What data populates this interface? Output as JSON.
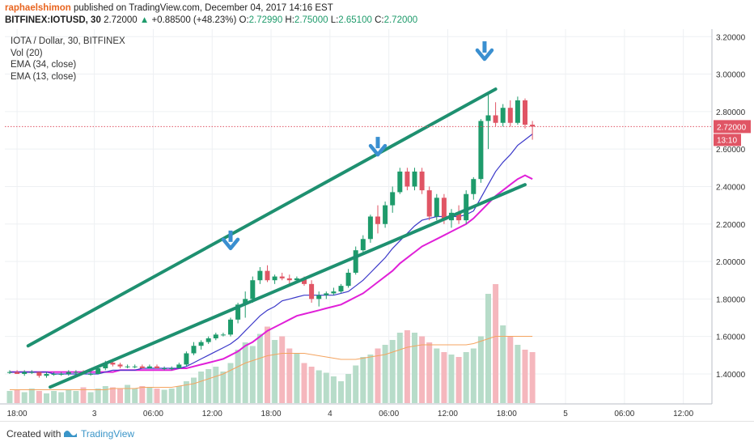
{
  "header": {
    "author": "raphaelshimon",
    "published": "published on TradingView.com, December 04, 2017 14:16 EST",
    "symbol": "BITFINEX:IOTUSD, 30",
    "last": "2.72000",
    "arrow": "▲",
    "change": "+0.88500 (+48.23%)",
    "o_label": "O:",
    "o": "2.72990",
    "h_label": "H:",
    "h": "2.75000",
    "l_label": "L:",
    "l": "2.65100",
    "c_label": "C:",
    "c": "2.72000"
  },
  "legend": {
    "title": "IOTA / Dollar, 30, BITFINEX",
    "vol": "Vol (20)",
    "ema34": "EMA (34, close)",
    "ema13": "EMA (13, close)"
  },
  "footer": {
    "created": "Created with",
    "brand": "TradingView"
  },
  "colors": {
    "up": "#1e9b6b",
    "down": "#e05565",
    "trendline": "#1e9070",
    "arrow": "#3a8fd0",
    "ema13": "#3b38c9",
    "ema34": "#e020d8",
    "vol_ma": "#f4a460",
    "vol_up": "#b7dcc9",
    "vol_down": "#f5b7bd",
    "price_label": "#e05565"
  },
  "chart_data": {
    "type": "candlestick",
    "price_axis": {
      "range": [
        1.24,
        3.24
      ],
      "ticks": [
        "3.20000",
        "3.00000",
        "2.80000",
        "2.60000",
        "2.40000",
        "2.20000",
        "2.00000",
        "1.80000",
        "1.60000",
        "1.40000"
      ]
    },
    "time_axis": [
      "18:00",
      "3",
      "06:00",
      "12:00",
      "18:00",
      "4",
      "06:00",
      "12:00",
      "18:00",
      "5",
      "06:00",
      "12:00"
    ],
    "last_price_label": "2.72000",
    "countdown_label": "13:10",
    "last_price": 2.72,
    "trendlines": [
      {
        "name": "upper",
        "from": [
          2.5,
          1.55
        ],
        "to": [
          66,
          2.92
        ]
      },
      {
        "name": "lower",
        "from": [
          5.5,
          1.33
        ],
        "to": [
          70,
          2.41
        ]
      }
    ],
    "arrows_at_bar": [
      30,
      50,
      64.5
    ],
    "candles": [
      {
        "o": 1.41,
        "h": 1.42,
        "l": 1.4,
        "c": 1.41
      },
      {
        "o": 1.41,
        "h": 1.42,
        "l": 1.4,
        "c": 1.4
      },
      {
        "o": 1.4,
        "h": 1.42,
        "l": 1.39,
        "c": 1.41
      },
      {
        "o": 1.41,
        "h": 1.42,
        "l": 1.4,
        "c": 1.41
      },
      {
        "o": 1.41,
        "h": 1.41,
        "l": 1.38,
        "c": 1.39
      },
      {
        "o": 1.39,
        "h": 1.41,
        "l": 1.38,
        "c": 1.4
      },
      {
        "o": 1.4,
        "h": 1.41,
        "l": 1.39,
        "c": 1.4
      },
      {
        "o": 1.4,
        "h": 1.41,
        "l": 1.39,
        "c": 1.4
      },
      {
        "o": 1.4,
        "h": 1.42,
        "l": 1.39,
        "c": 1.41
      },
      {
        "o": 1.41,
        "h": 1.42,
        "l": 1.4,
        "c": 1.41
      },
      {
        "o": 1.41,
        "h": 1.42,
        "l": 1.4,
        "c": 1.4
      },
      {
        "o": 1.4,
        "h": 1.41,
        "l": 1.39,
        "c": 1.4
      },
      {
        "o": 1.4,
        "h": 1.44,
        "l": 1.4,
        "c": 1.43
      },
      {
        "o": 1.43,
        "h": 1.47,
        "l": 1.42,
        "c": 1.46
      },
      {
        "o": 1.46,
        "h": 1.47,
        "l": 1.44,
        "c": 1.45
      },
      {
        "o": 1.45,
        "h": 1.46,
        "l": 1.43,
        "c": 1.44
      },
      {
        "o": 1.44,
        "h": 1.45,
        "l": 1.43,
        "c": 1.44
      },
      {
        "o": 1.44,
        "h": 1.45,
        "l": 1.43,
        "c": 1.44
      },
      {
        "o": 1.44,
        "h": 1.45,
        "l": 1.43,
        "c": 1.43
      },
      {
        "o": 1.43,
        "h": 1.45,
        "l": 1.43,
        "c": 1.44
      },
      {
        "o": 1.44,
        "h": 1.45,
        "l": 1.43,
        "c": 1.43
      },
      {
        "o": 1.43,
        "h": 1.44,
        "l": 1.42,
        "c": 1.43
      },
      {
        "o": 1.43,
        "h": 1.44,
        "l": 1.42,
        "c": 1.43
      },
      {
        "o": 1.43,
        "h": 1.46,
        "l": 1.43,
        "c": 1.45
      },
      {
        "o": 1.45,
        "h": 1.52,
        "l": 1.44,
        "c": 1.51
      },
      {
        "o": 1.51,
        "h": 1.57,
        "l": 1.5,
        "c": 1.55
      },
      {
        "o": 1.55,
        "h": 1.58,
        "l": 1.53,
        "c": 1.57
      },
      {
        "o": 1.57,
        "h": 1.6,
        "l": 1.56,
        "c": 1.59
      },
      {
        "o": 1.59,
        "h": 1.62,
        "l": 1.58,
        "c": 1.61
      },
      {
        "o": 1.61,
        "h": 1.62,
        "l": 1.6,
        "c": 1.61
      },
      {
        "o": 1.61,
        "h": 1.7,
        "l": 1.6,
        "c": 1.69
      },
      {
        "o": 1.69,
        "h": 1.78,
        "l": 1.67,
        "c": 1.77
      },
      {
        "o": 1.77,
        "h": 1.84,
        "l": 1.7,
        "c": 1.8
      },
      {
        "o": 1.8,
        "h": 1.92,
        "l": 1.78,
        "c": 1.9
      },
      {
        "o": 1.9,
        "h": 1.97,
        "l": 1.88,
        "c": 1.95
      },
      {
        "o": 1.95,
        "h": 1.98,
        "l": 1.89,
        "c": 1.9
      },
      {
        "o": 1.9,
        "h": 1.93,
        "l": 1.88,
        "c": 1.92
      },
      {
        "o": 1.92,
        "h": 1.94,
        "l": 1.9,
        "c": 1.91
      },
      {
        "o": 1.91,
        "h": 1.93,
        "l": 1.88,
        "c": 1.9
      },
      {
        "o": 1.9,
        "h": 1.92,
        "l": 1.89,
        "c": 1.91
      },
      {
        "o": 1.91,
        "h": 1.92,
        "l": 1.87,
        "c": 1.88
      },
      {
        "o": 1.88,
        "h": 1.9,
        "l": 1.78,
        "c": 1.8
      },
      {
        "o": 1.8,
        "h": 1.84,
        "l": 1.76,
        "c": 1.82
      },
      {
        "o": 1.82,
        "h": 1.84,
        "l": 1.8,
        "c": 1.83
      },
      {
        "o": 1.83,
        "h": 1.86,
        "l": 1.82,
        "c": 1.84
      },
      {
        "o": 1.84,
        "h": 1.88,
        "l": 1.83,
        "c": 1.87
      },
      {
        "o": 1.87,
        "h": 1.96,
        "l": 1.86,
        "c": 1.94
      },
      {
        "o": 1.94,
        "h": 2.08,
        "l": 1.93,
        "c": 2.06
      },
      {
        "o": 2.06,
        "h": 2.14,
        "l": 2.05,
        "c": 2.12
      },
      {
        "o": 2.12,
        "h": 2.25,
        "l": 2.1,
        "c": 2.24
      },
      {
        "o": 2.24,
        "h": 2.3,
        "l": 2.15,
        "c": 2.2
      },
      {
        "o": 2.2,
        "h": 2.32,
        "l": 2.18,
        "c": 2.3
      },
      {
        "o": 2.3,
        "h": 2.4,
        "l": 2.26,
        "c": 2.37
      },
      {
        "o": 2.37,
        "h": 2.5,
        "l": 2.36,
        "c": 2.48
      },
      {
        "o": 2.48,
        "h": 2.5,
        "l": 2.38,
        "c": 2.4
      },
      {
        "o": 2.4,
        "h": 2.5,
        "l": 2.38,
        "c": 2.48
      },
      {
        "o": 2.48,
        "h": 2.5,
        "l": 2.36,
        "c": 2.38
      },
      {
        "o": 2.38,
        "h": 2.4,
        "l": 2.22,
        "c": 2.24
      },
      {
        "o": 2.24,
        "h": 2.36,
        "l": 2.22,
        "c": 2.34
      },
      {
        "o": 2.34,
        "h": 2.36,
        "l": 2.2,
        "c": 2.22
      },
      {
        "o": 2.22,
        "h": 2.28,
        "l": 2.18,
        "c": 2.26
      },
      {
        "o": 2.26,
        "h": 2.3,
        "l": 2.2,
        "c": 2.22
      },
      {
        "o": 2.22,
        "h": 2.38,
        "l": 2.2,
        "c": 2.36
      },
      {
        "o": 2.36,
        "h": 2.45,
        "l": 2.33,
        "c": 2.44
      },
      {
        "o": 2.44,
        "h": 2.76,
        "l": 2.42,
        "c": 2.75
      },
      {
        "o": 2.75,
        "h": 2.9,
        "l": 2.6,
        "c": 2.78
      },
      {
        "o": 2.78,
        "h": 2.85,
        "l": 2.72,
        "c": 2.74
      },
      {
        "o": 2.74,
        "h": 2.84,
        "l": 2.72,
        "c": 2.82
      },
      {
        "o": 2.82,
        "h": 2.86,
        "l": 2.72,
        "c": 2.74
      },
      {
        "o": 2.74,
        "h": 2.88,
        "l": 2.73,
        "c": 2.86
      },
      {
        "o": 2.86,
        "h": 2.87,
        "l": 2.71,
        "c": 2.73
      },
      {
        "o": 2.73,
        "h": 2.75,
        "l": 2.65,
        "c": 2.72
      }
    ],
    "volume": [
      0.1,
      0.11,
      0.09,
      0.12,
      0.1,
      0.08,
      0.1,
      0.09,
      0.11,
      0.1,
      0.13,
      0.09,
      0.12,
      0.14,
      0.13,
      0.12,
      0.15,
      0.12,
      0.14,
      0.13,
      0.12,
      0.11,
      0.12,
      0.14,
      0.18,
      0.21,
      0.26,
      0.28,
      0.3,
      0.26,
      0.33,
      0.44,
      0.5,
      0.47,
      0.57,
      0.63,
      0.52,
      0.55,
      0.45,
      0.41,
      0.33,
      0.3,
      0.27,
      0.25,
      0.22,
      0.18,
      0.24,
      0.31,
      0.38,
      0.4,
      0.45,
      0.48,
      0.52,
      0.58,
      0.6,
      0.58,
      0.55,
      0.5,
      0.45,
      0.42,
      0.4,
      0.38,
      0.42,
      0.45,
      0.55,
      0.9,
      0.98,
      0.64,
      0.55,
      0.48,
      0.44,
      0.42
    ],
    "ema13": [
      1.41,
      1.41,
      1.41,
      1.41,
      1.41,
      1.41,
      1.4,
      1.4,
      1.4,
      1.4,
      1.4,
      1.4,
      1.4,
      1.41,
      1.42,
      1.42,
      1.42,
      1.42,
      1.43,
      1.43,
      1.43,
      1.43,
      1.43,
      1.43,
      1.44,
      1.46,
      1.48,
      1.5,
      1.52,
      1.54,
      1.56,
      1.59,
      1.63,
      1.67,
      1.71,
      1.74,
      1.76,
      1.79,
      1.8,
      1.81,
      1.82,
      1.82,
      1.82,
      1.82,
      1.82,
      1.83,
      1.84,
      1.87,
      1.9,
      1.94,
      1.98,
      2.02,
      2.07,
      2.11,
      2.15,
      2.19,
      2.22,
      2.23,
      2.24,
      2.24,
      2.24,
      2.24,
      2.25,
      2.27,
      2.34,
      2.41,
      2.48,
      2.53,
      2.57,
      2.62,
      2.65,
      2.68
    ],
    "ema34": [
      1.41,
      1.41,
      1.41,
      1.41,
      1.41,
      1.41,
      1.41,
      1.41,
      1.41,
      1.41,
      1.41,
      1.41,
      1.41,
      1.41,
      1.41,
      1.42,
      1.42,
      1.42,
      1.42,
      1.42,
      1.42,
      1.42,
      1.42,
      1.43,
      1.43,
      1.44,
      1.45,
      1.46,
      1.47,
      1.48,
      1.5,
      1.52,
      1.55,
      1.57,
      1.6,
      1.63,
      1.65,
      1.67,
      1.69,
      1.71,
      1.72,
      1.73,
      1.74,
      1.75,
      1.76,
      1.77,
      1.79,
      1.81,
      1.83,
      1.86,
      1.89,
      1.92,
      1.95,
      1.99,
      2.02,
      2.05,
      2.08,
      2.1,
      2.12,
      2.14,
      2.16,
      2.18,
      2.2,
      2.23,
      2.27,
      2.31,
      2.35,
      2.38,
      2.41,
      2.44,
      2.46,
      2.44
    ],
    "vol_ma": [
      0.11,
      0.11,
      0.11,
      0.11,
      0.11,
      0.11,
      0.11,
      0.11,
      0.11,
      0.11,
      0.11,
      0.11,
      0.11,
      0.11,
      0.12,
      0.12,
      0.12,
      0.12,
      0.13,
      0.13,
      0.13,
      0.13,
      0.13,
      0.14,
      0.15,
      0.16,
      0.18,
      0.2,
      0.22,
      0.24,
      0.27,
      0.3,
      0.33,
      0.35,
      0.37,
      0.39,
      0.4,
      0.41,
      0.41,
      0.41,
      0.41,
      0.4,
      0.39,
      0.38,
      0.37,
      0.36,
      0.36,
      0.36,
      0.37,
      0.38,
      0.39,
      0.4,
      0.42,
      0.44,
      0.46,
      0.47,
      0.48,
      0.48,
      0.48,
      0.48,
      0.48,
      0.48,
      0.48,
      0.49,
      0.51,
      0.53,
      0.55,
      0.55,
      0.55,
      0.55,
      0.55,
      0.55
    ]
  }
}
